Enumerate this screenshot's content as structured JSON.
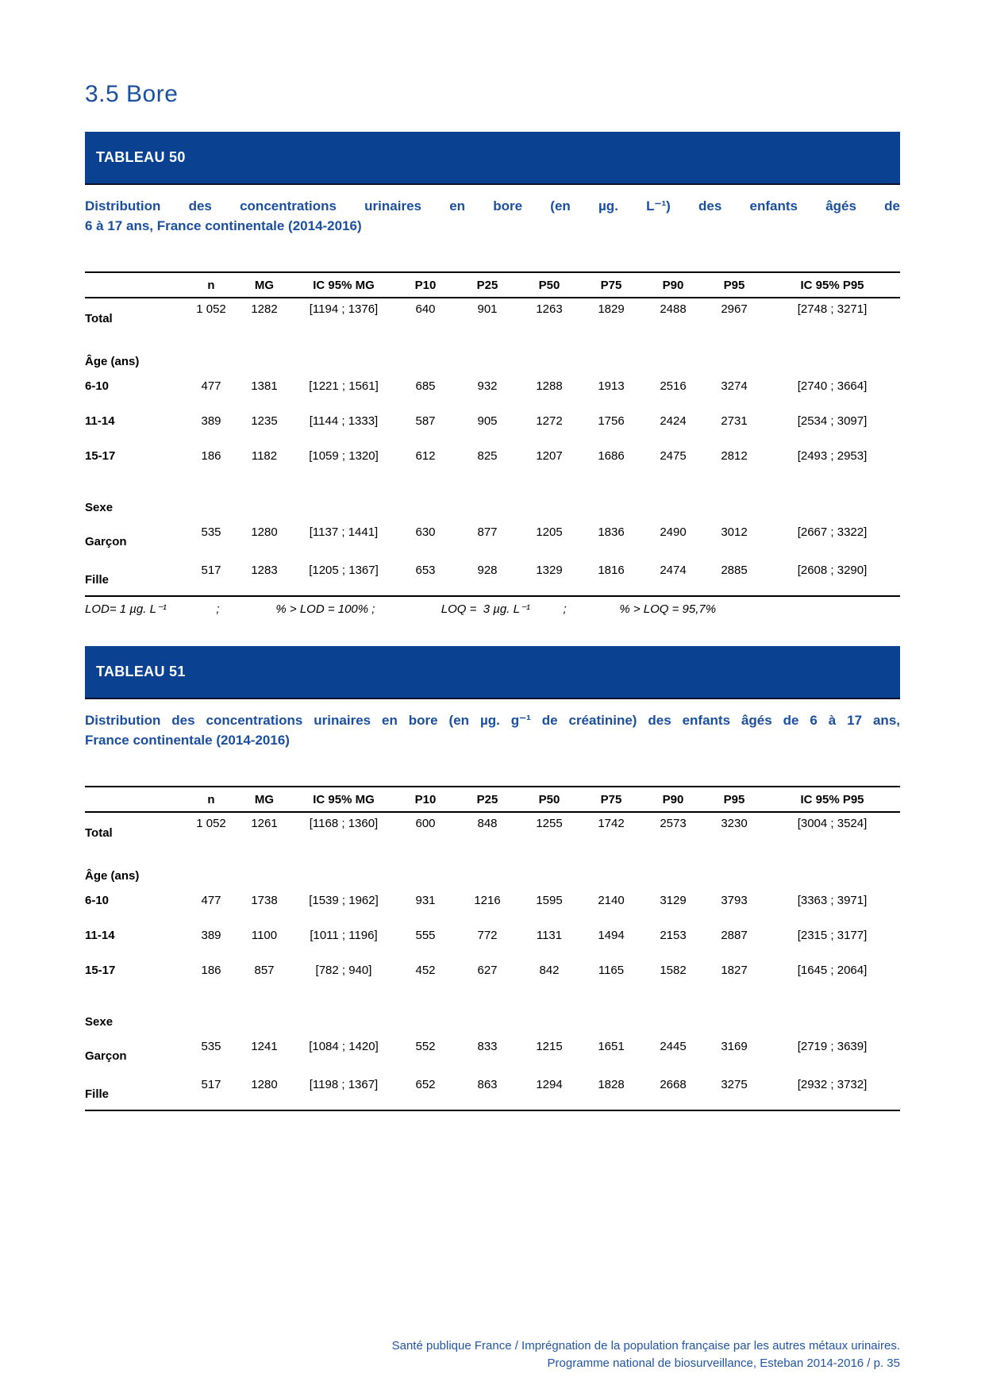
{
  "page": {
    "section_title": "3.5 Bore",
    "footer": {
      "line1": "Santé publique France / Imprégnation de la population française par les autres métaux urinaires.",
      "line2": "Programme national de biosurveillance, Esteban 2014-2016 / p. 35"
    }
  },
  "colors": {
    "banner_blue": "#0A4191",
    "text_blue": "#1B4FA0",
    "footer_blue": "#2156A5"
  },
  "tables": [
    {
      "banner": "TABLEAU 50",
      "caption_lines": [
        "Distribution des concentrations urinaires en bore (en µg. L⁻¹) des enfants âgés de",
        "6 à 17 ans, France continentale (2014-2016)"
      ],
      "columns": [
        "n",
        "MG",
        "IC 95% MG",
        "P10",
        "P25",
        "P50",
        "P75",
        "P90",
        "P95",
        "IC 95% P95"
      ],
      "rows": [
        {
          "label": "Total",
          "values": [
            "1 052",
            "1282",
            "[1194 ; 1376]",
            "640",
            "901",
            "1263",
            "1829",
            "2488",
            "2967",
            "[2748 ; 3271]"
          ]
        },
        {
          "label": "Âge (ans)",
          "group": true
        },
        {
          "label": "6-10",
          "values": [
            "477",
            "1381",
            "[1221 ; 1561]",
            "685",
            "932",
            "1288",
            "1913",
            "2516",
            "3274",
            "[2740 ; 3664]"
          ]
        },
        {
          "label": "11-14",
          "values": [
            "389",
            "1235",
            "[1144 ; 1333]",
            "587",
            "905",
            "1272",
            "1756",
            "2424",
            "2731",
            "[2534 ; 3097]"
          ]
        },
        {
          "label": "15-17",
          "values": [
            "186",
            "1182",
            "[1059 ; 1320]",
            "612",
            "825",
            "1207",
            "1686",
            "2475",
            "2812",
            "[2493 ; 2953]"
          ]
        },
        {
          "label": "Sexe",
          "group": true
        },
        {
          "label": "Garçon",
          "values": [
            "535",
            "1280",
            "[1137 ; 1441]",
            "630",
            "877",
            "1205",
            "1836",
            "2490",
            "3012",
            "[2667 ; 3322]"
          ]
        },
        {
          "label": "Fille",
          "values": [
            "517",
            "1283",
            "[1205 ; 1367]",
            "653",
            "928",
            "1329",
            "1816",
            "2474",
            "2885",
            "[2608 ; 3290]"
          ]
        }
      ],
      "note": "LOD= 1 µg. L⁻¹               ;                 % > LOD = 100% ;                    LOQ =  3 µg. L⁻¹          ;                % > LOQ = 95,7%"
    },
    {
      "banner": "TABLEAU 51",
      "caption_lines": [
        "Distribution des concentrations urinaires en bore (en µg. g⁻¹ de créatinine) des enfants âgés de 6 à 17 ans,",
        "France continentale (2014-2016)"
      ],
      "columns": [
        "n",
        "MG",
        "IC 95% MG",
        "P10",
        "P25",
        "P50",
        "P75",
        "P90",
        "P95",
        "IC 95% P95"
      ],
      "rows": [
        {
          "label": "Total",
          "values": [
            "1 052",
            "1261",
            "[1168 ; 1360]",
            "600",
            "848",
            "1255",
            "1742",
            "2573",
            "3230",
            "[3004 ; 3524]"
          ]
        },
        {
          "label": "Âge (ans)",
          "group": true
        },
        {
          "label": "6-10",
          "values": [
            "477",
            "1738",
            "[1539 ; 1962]",
            "931",
            "1216",
            "1595",
            "2140",
            "3129",
            "3793",
            "[3363 ; 3971]"
          ]
        },
        {
          "label": "11-14",
          "values": [
            "389",
            "1100",
            "[1011 ; 1196]",
            "555",
            "772",
            "1131",
            "1494",
            "2153",
            "2887",
            "[2315 ; 3177]"
          ]
        },
        {
          "label": "15-17",
          "values": [
            "186",
            "857",
            "[782 ; 940]",
            "452",
            "627",
            "842",
            "1165",
            "1582",
            "1827",
            "[1645 ; 2064]"
          ]
        },
        {
          "label": "Sexe",
          "group": true
        },
        {
          "label": "Garçon",
          "values": [
            "535",
            "1241",
            "[1084 ; 1420]",
            "552",
            "833",
            "1215",
            "1651",
            "2445",
            "3169",
            "[2719 ; 3639]"
          ]
        },
        {
          "label": "Fille",
          "values": [
            "517",
            "1280",
            "[1198 ; 1367]",
            "652",
            "863",
            "1294",
            "1828",
            "2668",
            "3275",
            "[2932 ; 3732]"
          ]
        }
      ],
      "note": null
    }
  ]
}
